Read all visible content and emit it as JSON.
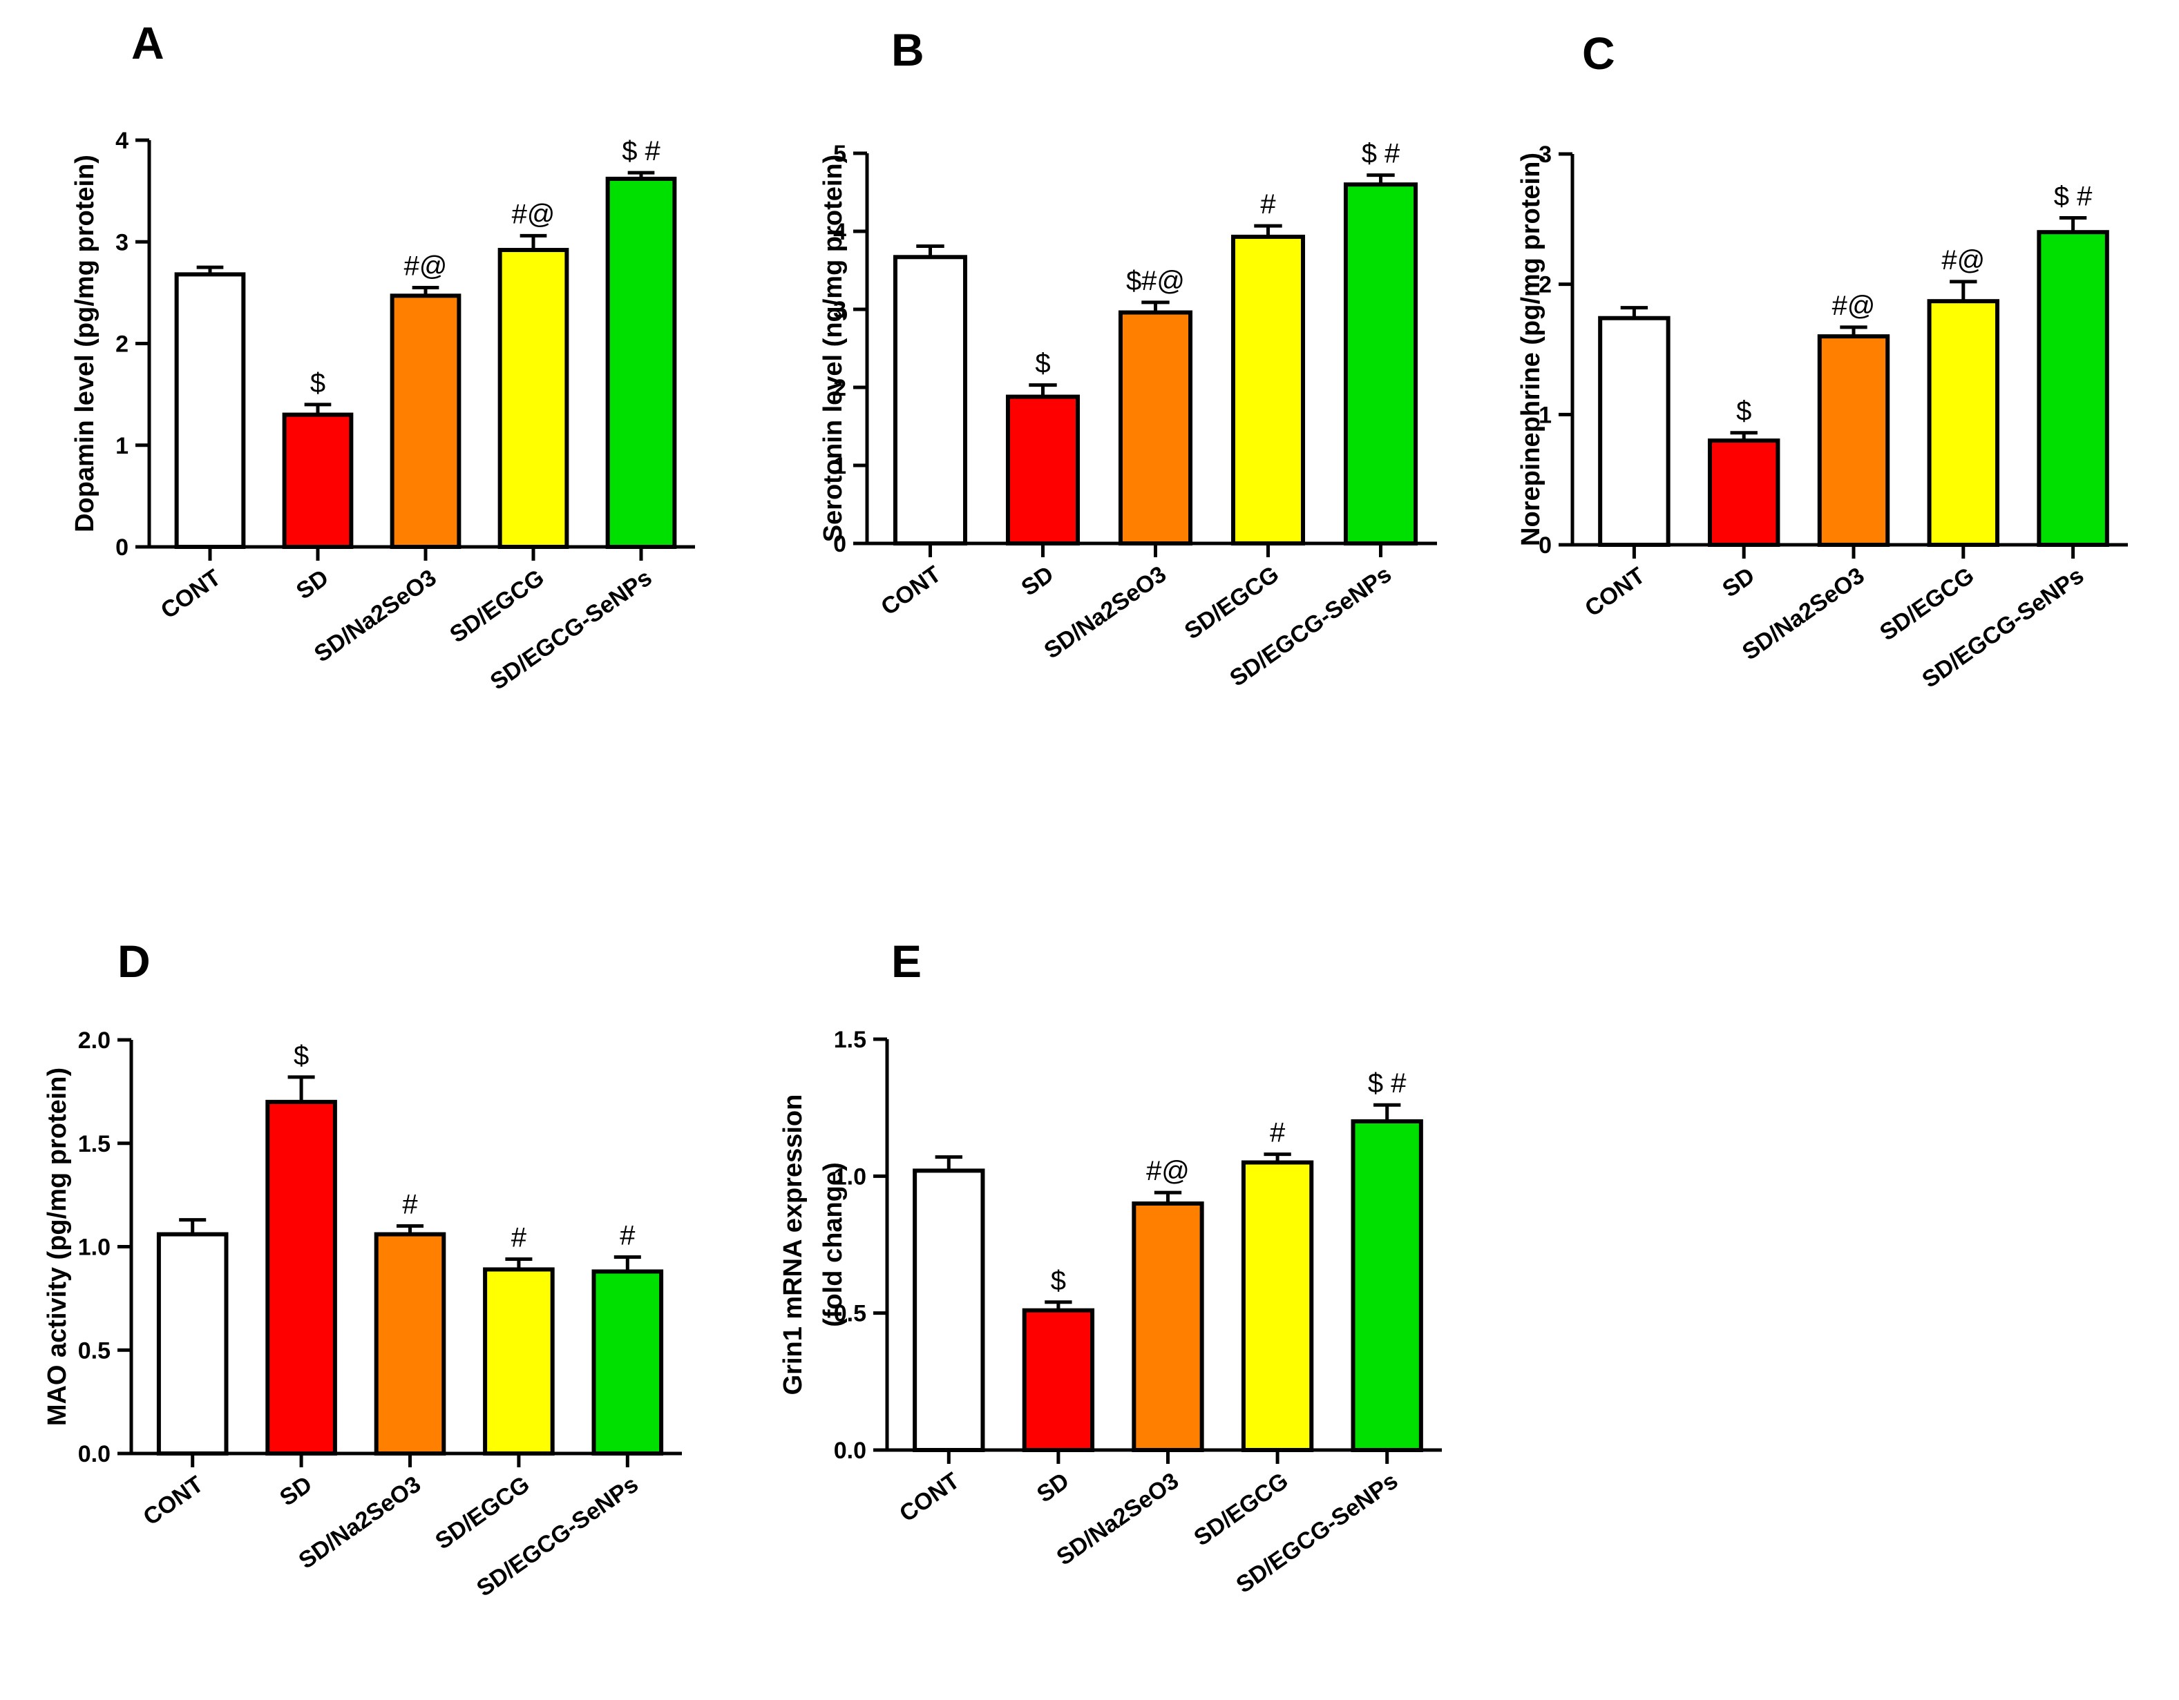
{
  "chart_data": [
    {
      "type": "bar",
      "panel": "A",
      "categories": [
        "CONT",
        "SD",
        "SD/Na2SeO3",
        "SD/EGCG",
        "SD/EGCG-SeNPs"
      ],
      "values": [
        2.68,
        1.3,
        2.47,
        2.92,
        3.62
      ],
      "errors": [
        0.07,
        0.1,
        0.08,
        0.14,
        0.06
      ],
      "annotations": [
        "",
        "$",
        "#@",
        "#@",
        "$ #"
      ],
      "colors": [
        "#ffffff",
        "#ff0000",
        "#ff8000",
        "#ffff00",
        "#00e000"
      ],
      "ylabel": "Dopamin level (pg/mg protein)",
      "ylim": [
        0,
        4
      ],
      "yticks": [
        "0",
        "1",
        "2",
        "3",
        "4"
      ]
    },
    {
      "type": "bar",
      "panel": "B",
      "categories": [
        "CONT",
        "SD",
        "SD/Na2SeO3",
        "SD/EGCG",
        "SD/EGCG-SeNPs"
      ],
      "values": [
        3.67,
        1.88,
        2.96,
        3.93,
        4.6
      ],
      "errors": [
        0.14,
        0.15,
        0.13,
        0.14,
        0.12
      ],
      "annotations": [
        "",
        "$",
        "$#@",
        "#",
        "$ #"
      ],
      "colors": [
        "#ffffff",
        "#ff0000",
        "#ff8000",
        "#ffff00",
        "#00e000"
      ],
      "ylabel": "Serotonin level (ng/mg protein)",
      "ylim": [
        0,
        5
      ],
      "yticks": [
        "0",
        "1",
        "2",
        "3",
        "4",
        "5"
      ]
    },
    {
      "type": "bar",
      "panel": "C",
      "categories": [
        "CONT",
        "SD",
        "SD/Na2SeO3",
        "SD/EGCG",
        "SD/EGCG-SeNPs"
      ],
      "values": [
        1.74,
        0.8,
        1.6,
        1.87,
        2.4
      ],
      "errors": [
        0.08,
        0.06,
        0.07,
        0.15,
        0.11
      ],
      "annotations": [
        "",
        "$",
        "#@",
        "#@",
        "$ #"
      ],
      "colors": [
        "#ffffff",
        "#ff0000",
        "#ff8000",
        "#ffff00",
        "#00e000"
      ],
      "ylabel": "Norepinephrine (pg/mg protein)",
      "ylim": [
        0,
        3
      ],
      "yticks": [
        "0",
        "1",
        "2",
        "3"
      ]
    },
    {
      "type": "bar",
      "panel": "D",
      "categories": [
        "CONT",
        "SD",
        "SD/Na2SeO3",
        "SD/EGCG",
        "SD/EGCG-SeNPs"
      ],
      "values": [
        1.06,
        1.7,
        1.06,
        0.89,
        0.88
      ],
      "errors": [
        0.07,
        0.12,
        0.04,
        0.05,
        0.07
      ],
      "annotations": [
        "",
        "$",
        "#",
        "#",
        "#"
      ],
      "colors": [
        "#ffffff",
        "#ff0000",
        "#ff8000",
        "#ffff00",
        "#00e000"
      ],
      "ylabel": "MAO activity (pg/mg protein)",
      "ylim": [
        0,
        2
      ],
      "yticks": [
        "0.0",
        "0.5",
        "1.0",
        "1.5",
        "2.0"
      ]
    },
    {
      "type": "bar",
      "panel": "E",
      "categories": [
        "CONT",
        "SD",
        "SD/Na2SeO3",
        "SD/EGCG",
        "SD/EGCG-SeNPs"
      ],
      "values": [
        1.02,
        0.51,
        0.9,
        1.05,
        1.2
      ],
      "errors": [
        0.05,
        0.03,
        0.04,
        0.03,
        0.06
      ],
      "annotations": [
        "",
        "$",
        "#@",
        "#",
        "$ #"
      ],
      "colors": [
        "#ffffff",
        "#ff0000",
        "#ff8000",
        "#ffff00",
        "#00e000"
      ],
      "ylabel": "Grin1 mRNA expression",
      "ylabel2": "(fold change)",
      "ylim": [
        0,
        1.5
      ],
      "yticks": [
        "0.0",
        "0.5",
        "1.0",
        "1.5"
      ]
    }
  ]
}
